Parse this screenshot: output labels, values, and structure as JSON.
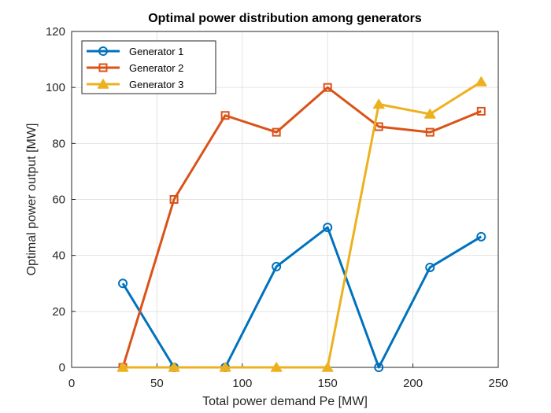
{
  "chart_data": {
    "type": "line",
    "title": "Optimal power distribution among generators",
    "xlabel": "Total power demand Pe [MW]",
    "ylabel": "Optimal power output [MW]",
    "xlim": [
      0,
      250
    ],
    "ylim": [
      0,
      120
    ],
    "xticks": [
      0,
      50,
      100,
      150,
      200,
      250
    ],
    "yticks": [
      0,
      20,
      40,
      60,
      80,
      100,
      120
    ],
    "grid": true,
    "legend_position": "top-left",
    "x": [
      30,
      60,
      90,
      120,
      150,
      180,
      210,
      240
    ],
    "series": [
      {
        "name": "Generator 1",
        "color": "#0072BD",
        "marker": "circle",
        "values": [
          30,
          0,
          0,
          36,
          50,
          0,
          35.7,
          46.7
        ]
      },
      {
        "name": "Generator 2",
        "color": "#D95319",
        "marker": "square",
        "values": [
          0,
          60,
          90,
          84,
          100,
          86,
          84,
          91.5
        ]
      },
      {
        "name": "Generator 3",
        "color": "#EDB120",
        "marker": "triangle",
        "values": [
          0,
          0,
          0,
          0,
          0,
          94,
          90.5,
          102
        ]
      }
    ]
  }
}
